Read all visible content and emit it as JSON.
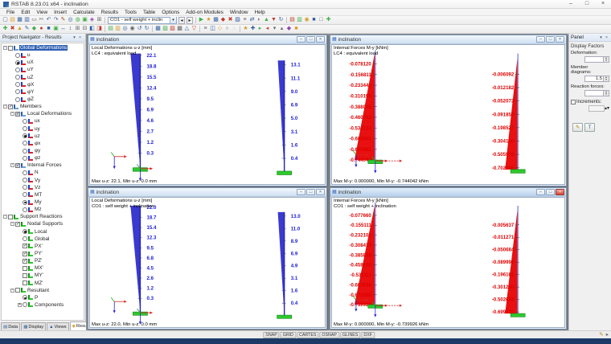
{
  "window": {
    "title": "RSTAB 8.23.01 x64 - inclination",
    "controls": {
      "minimize": "–",
      "maximize": "□",
      "close": "×"
    }
  },
  "icons": {
    "app": "▦",
    "combo_arrow": "▾",
    "prev": "◂",
    "next": "▸",
    "check": "✓",
    "spin_up": "▴",
    "spin_down": "▾",
    "pin": "▾",
    "close_small": "×",
    "child_min": "–",
    "child_max": "□",
    "child_close": "×",
    "panel_edit": "✎",
    "panel_text": "T",
    "expander_open": "-",
    "expander_closed": "+"
  },
  "menu": [
    "File",
    "Edit",
    "View",
    "Insert",
    "Calculate",
    "Results",
    "Tools",
    "Table",
    "Options",
    "Add-on Modules",
    "Window",
    "Help"
  ],
  "toolbar": {
    "load_case": "CO1 - self weight + inclin",
    "row1a": [
      [
        "▢",
        "#556b8a"
      ],
      [
        "▤",
        "#d99b2b"
      ],
      [
        "▦",
        "#2f5fa0"
      ],
      [
        "▥",
        "#2f5fa0"
      ],
      [
        "▭",
        "#666666"
      ],
      [
        "✂",
        "#666666"
      ],
      [
        "↶",
        "#2f5fa0"
      ],
      [
        "↷",
        "#2f5fa0"
      ],
      [
        "✎",
        "#a0522d"
      ],
      [
        "◎",
        "#2f5fa0"
      ],
      [
        "◍",
        "#3fae49"
      ],
      [
        "▣",
        "#3fae49"
      ],
      [
        "◈",
        "#8e44ad"
      ],
      [
        "⊞",
        "#666666"
      ]
    ],
    "row1b": [
      [
        "▶",
        "#3fae49"
      ],
      [
        "★",
        "#d99b2b"
      ],
      [
        "▦",
        "#2f5fa0"
      ],
      [
        "◆",
        "#c0392b"
      ],
      [
        "✖",
        "#c0392b"
      ],
      [
        "▧",
        "#2f5fa0"
      ],
      [
        "≡",
        "#666666"
      ],
      [
        "⇄",
        "#2f5fa0"
      ],
      [
        "◐",
        "#666666"
      ],
      [
        "▲",
        "#3fae49"
      ],
      [
        "▼",
        "#c0392b"
      ],
      [
        "↻",
        "#2f5fa0"
      ]
    ],
    "row1c": [
      [
        "▤",
        "#c0392b"
      ],
      [
        "▥",
        "#3fae49"
      ],
      [
        "◉",
        "#d99b2b"
      ],
      [
        "■",
        "#2f5fa0"
      ],
      [
        "□",
        "#666666"
      ],
      [
        "✚",
        "#3fae49"
      ]
    ],
    "row2": [
      [
        "✚",
        "#3fae49"
      ],
      [
        "✖",
        "#c0392b"
      ],
      [
        "▲",
        "#d99b2b"
      ],
      [
        "✎",
        "#2f5fa0"
      ],
      [
        "◆",
        "#3fae49"
      ],
      [
        "●",
        "#c0392b"
      ],
      [
        "■",
        "#2f5fa0"
      ],
      [
        "▣",
        "#3fae49"
      ],
      [
        "↔",
        "#2f5fa0"
      ],
      [
        "↕",
        "#2f5fa0"
      ],
      [
        "⊞",
        "#666666"
      ],
      [
        "⊟",
        "#666666"
      ],
      [
        "◧",
        "#2f5fa0"
      ],
      [
        "◨",
        "#c0392b"
      ],
      "|",
      [
        "▤",
        "#3fae49"
      ],
      [
        "▥",
        "#d99b2b"
      ],
      [
        "◎",
        "#2f5fa0"
      ],
      [
        "◉",
        "#666666"
      ],
      [
        "↺",
        "#2f5fa0"
      ],
      [
        "↻",
        "#2f5fa0"
      ],
      "|",
      [
        "▦",
        "#2f5fa0"
      ],
      [
        "▧",
        "#3fae49"
      ],
      [
        "▨",
        "#c0392b"
      ],
      [
        "▩",
        "#666666"
      ],
      [
        "△",
        "#2f5fa0"
      ],
      [
        "▽",
        "#c0392b"
      ],
      "|",
      [
        "≡",
        "#666666"
      ],
      [
        "◫",
        "#2f5fa0"
      ],
      [
        "◇",
        "#d99b2b"
      ],
      [
        "○",
        "#666666"
      ],
      [
        "◌",
        "#999999"
      ],
      "|",
      [
        "★",
        "#d99b2b"
      ],
      [
        "✚",
        "#2f5fa0"
      ],
      [
        "▸",
        "#3fae49"
      ],
      [
        "◂",
        "#c0392b"
      ],
      [
        "▾",
        "#666666"
      ],
      [
        "▴",
        "#666666"
      ],
      [
        "◆",
        "#8e44ad"
      ],
      [
        "■",
        "#d99b2b"
      ]
    ]
  },
  "navigator": {
    "title": "Project Navigator - Results",
    "tree": [
      {
        "label": "Global Deformations",
        "level": 0,
        "exp": "-",
        "ctrl": "check-off",
        "icon": "grp",
        "sel": true
      },
      {
        "label": "u",
        "level": 1,
        "ctrl": "radio-off",
        "icon": "res"
      },
      {
        "label": "uX",
        "level": 1,
        "ctrl": "radio-on",
        "icon": "res"
      },
      {
        "label": "uY",
        "level": 1,
        "ctrl": "radio-off",
        "icon": "res"
      },
      {
        "label": "uZ",
        "level": 1,
        "ctrl": "radio-off",
        "icon": "res"
      },
      {
        "label": "φX",
        "level": 1,
        "ctrl": "radio-off",
        "icon": "res"
      },
      {
        "label": "φY",
        "level": 1,
        "ctrl": "radio-off",
        "icon": "res"
      },
      {
        "label": "φZ",
        "level": 1,
        "ctrl": "radio-off",
        "icon": "res"
      },
      {
        "label": "Members",
        "level": 0,
        "exp": "-",
        "ctrl": "check-on",
        "icon": "grp"
      },
      {
        "label": "Local Deformations",
        "level": 1,
        "exp": "-",
        "ctrl": "check-part",
        "icon": "grp"
      },
      {
        "label": "ux",
        "level": 2,
        "ctrl": "radio-off",
        "icon": "res"
      },
      {
        "label": "uy",
        "level": 2,
        "ctrl": "radio-off",
        "icon": "res"
      },
      {
        "label": "uz",
        "level": 2,
        "ctrl": "radio-on",
        "icon": "res"
      },
      {
        "label": "φx",
        "level": 2,
        "ctrl": "radio-off",
        "icon": "res"
      },
      {
        "label": "φy",
        "level": 2,
        "ctrl": "radio-off",
        "icon": "res"
      },
      {
        "label": "φz",
        "level": 2,
        "ctrl": "radio-off",
        "icon": "res"
      },
      {
        "label": "Internal Forces",
        "level": 1,
        "exp": "-",
        "ctrl": "check-part",
        "icon": "grp"
      },
      {
        "label": "N",
        "level": 2,
        "ctrl": "radio-off",
        "icon": "res"
      },
      {
        "label": "Vy",
        "level": 2,
        "ctrl": "radio-off",
        "icon": "res"
      },
      {
        "label": "Vz",
        "level": 2,
        "ctrl": "radio-off",
        "icon": "res"
      },
      {
        "label": "MT",
        "level": 2,
        "ctrl": "radio-off",
        "icon": "res"
      },
      {
        "label": "My",
        "level": 2,
        "ctrl": "radio-on",
        "icon": "res"
      },
      {
        "label": "Mz",
        "level": 2,
        "ctrl": "radio-off",
        "icon": "res"
      },
      {
        "label": "Support Reactions",
        "level": 0,
        "exp": "-",
        "ctrl": "check-off",
        "icon": "sup"
      },
      {
        "label": "Nodal Supports",
        "level": 1,
        "exp": "-",
        "ctrl": "check-on",
        "icon": "sup"
      },
      {
        "label": "Local",
        "level": 2,
        "ctrl": "radio-on",
        "icon": "sup"
      },
      {
        "label": "Global",
        "level": 2,
        "ctrl": "radio-off",
        "icon": "sup"
      },
      {
        "label": "PX'",
        "level": 2,
        "ctrl": "check-on",
        "icon": "sup"
      },
      {
        "label": "PY'",
        "level": 2,
        "ctrl": "check-on",
        "icon": "sup"
      },
      {
        "label": "PZ'",
        "level": 2,
        "ctrl": "check-on",
        "icon": "sup"
      },
      {
        "label": "MX'",
        "level": 2,
        "ctrl": "check-off",
        "icon": "sup"
      },
      {
        "label": "MY'",
        "level": 2,
        "ctrl": "check-off",
        "icon": "sup"
      },
      {
        "label": "MZ'",
        "level": 2,
        "ctrl": "check-off",
        "icon": "sup"
      },
      {
        "label": "Resultant",
        "level": 1,
        "exp": "-",
        "ctrl": "check-off",
        "icon": "sup"
      },
      {
        "label": "P",
        "level": 2,
        "ctrl": "radio-on",
        "icon": "sup"
      },
      {
        "label": "Components",
        "level": 2,
        "exp": "+",
        "ctrl": "radio-off",
        "icon": "sup"
      }
    ],
    "tabs": [
      {
        "label": "Data",
        "icon": "▤",
        "color": "#2f5fa0"
      },
      {
        "label": "Display",
        "icon": "▦",
        "color": "#2f5fa0"
      },
      {
        "label": "Views",
        "icon": "▲",
        "color": "#2f5fa0"
      },
      {
        "label": "Results",
        "icon": "◆",
        "color": "#e0a030",
        "active": true
      }
    ]
  },
  "windows": [
    {
      "title": "inclination",
      "type": "deform",
      "active": false,
      "header": [
        "Local Deformations u-z [mm]",
        "LC4 : equivalent load"
      ],
      "status": "Max u-z: 22.1, Min u-z: 0.0 mm",
      "members": [
        {
          "values": [
            "22.1",
            "18.8",
            "15.5",
            "12.4",
            "9.5",
            "6.9",
            "4.6",
            "2.7",
            "1.2",
            "0.3"
          ]
        },
        {
          "values": [
            "13.1",
            "11.1",
            "9.0",
            "6.9",
            "5.0",
            "3.1",
            "1.6",
            "0.4"
          ]
        }
      ]
    },
    {
      "title": "inclination",
      "type": "moment",
      "active": false,
      "header": [
        "Internal Forces M-y [kNm]",
        "LC4 : equivalent load"
      ],
      "status": "Max M-y: 0.000000, Min M-y: -0.744042 kNm",
      "members": [
        {
          "values": [
            "-0.078120",
            "-0.156811",
            "-0.233446",
            "-0.310199",
            "-0.388045",
            "-0.460763",
            "-0.534133",
            "-0.605943",
            "-0.675981",
            "-0.744042"
          ]
        },
        {
          "values": [
            "-0.006092",
            "-0.012182",
            "-0.052073",
            "-0.091850",
            "-0.198527",
            "-0.304120",
            "-0.505976",
            "-0.702506"
          ]
        }
      ]
    },
    {
      "title": "inclination",
      "type": "deform",
      "active": false,
      "header": [
        "Local Deformations u-z [mm]",
        "CO1 : self weight + inclination"
      ],
      "status": "Max u-z: 22.0, Min u-z: 0.0 mm",
      "members": [
        {
          "values": [
            "22.0",
            "18.7",
            "15.4",
            "12.3",
            "9.5",
            "6.8",
            "4.5",
            "2.6",
            "1.2",
            "0.3"
          ]
        },
        {
          "values": [
            "13.0",
            "11.0",
            "8.9",
            "6.9",
            "4.9",
            "3.1",
            "1.6",
            "0.4"
          ]
        }
      ]
    },
    {
      "title": "inclination",
      "type": "moment",
      "active": true,
      "header": [
        "Internal Forces M-y [kNm]",
        "CO1 : self weight + inclination"
      ],
      "status": "Max M-y: 0.000000, Min M-y: -0.739926 kNm",
      "members": [
        {
          "values": [
            "-0.077660",
            "-0.155111",
            "-0.232102",
            "-0.308419",
            "-0.385838",
            "-0.458140",
            "-0.531111",
            "-0.602536",
            "-0.672200",
            "-0.739926"
          ]
        },
        {
          "values": [
            "-0.005637",
            "-0.011271",
            "-0.050684",
            "-0.089996",
            "-0.196161",
            "-0.301260",
            "-0.502634",
            "-0.699720"
          ]
        }
      ]
    }
  ],
  "panel": {
    "title": "Panel",
    "section": "Display Factors",
    "fields": [
      {
        "label": "Deformation:",
        "value": ""
      },
      {
        "label": "Member diagrams:",
        "value": "1.5"
      },
      {
        "label": "Reaction forces:",
        "value": ""
      }
    ],
    "increments_label": "Increments:"
  },
  "statusbar": {
    "buttons": [
      "SNAP",
      "GRID",
      "CARTES",
      "OSNAP",
      "GLINES",
      "DXF"
    ],
    "right_icons": [
      [
        "✎",
        "#b8860b"
      ],
      [
        "▸",
        "#666666"
      ]
    ]
  },
  "colors": {
    "deform_fill": "#3a3ad0",
    "deform_line": "#2222c0",
    "deform_text": "#1a1ad8",
    "moment_fill": "#e81010",
    "moment_line": "#8888dd",
    "moment_text": "#dd0000",
    "support": "#2ec82e",
    "support_edge": "#118811",
    "axis_x": "#dd2222",
    "axis_z": "#2222dd",
    "axis_y": "#22aa22"
  }
}
